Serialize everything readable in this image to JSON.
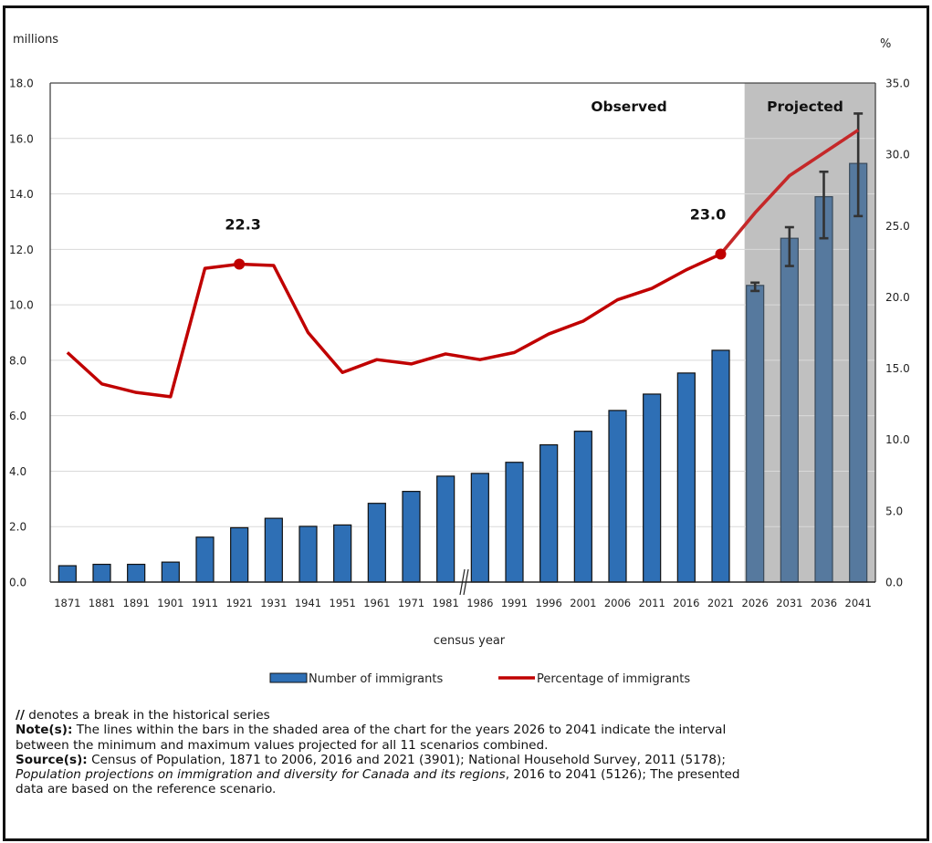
{
  "chart_data": {
    "type": "bar",
    "title": "",
    "xlabel": "census year",
    "ylabel": "millions",
    "y2label": "%",
    "ylim": [
      0,
      18
    ],
    "y2lim": [
      0,
      35
    ],
    "yticks": [
      "0.0",
      "2.0",
      "4.0",
      "6.0",
      "8.0",
      "10.0",
      "12.0",
      "14.0",
      "16.0",
      "18.0"
    ],
    "y2ticks": [
      "0.0",
      "5.0",
      "10.0",
      "15.0",
      "20.0",
      "25.0",
      "30.0",
      "35.0"
    ],
    "grid": true,
    "legend_position": "bottom",
    "categories": [
      "1871",
      "1881",
      "1891",
      "1901",
      "1911",
      "1921",
      "1931",
      "1941",
      "1951",
      "1961",
      "1971",
      "1981",
      "1986",
      "1991",
      "1996",
      "2001",
      "2006",
      "2011",
      "2016",
      "2021",
      "2026",
      "2031",
      "2036",
      "2041"
    ],
    "series": [
      {
        "name": "Number of immigrants",
        "type": "bar",
        "axis": "left",
        "color": "#2e6fb5",
        "projected_color": "#56799e",
        "values": [
          0.59,
          0.64,
          0.64,
          0.72,
          1.62,
          1.96,
          2.3,
          2.01,
          2.06,
          2.84,
          3.27,
          3.82,
          3.92,
          4.32,
          4.95,
          5.44,
          6.19,
          6.78,
          7.54,
          8.36,
          10.7,
          12.4,
          13.9,
          15.1
        ],
        "error_ranges": {
          "2026": [
            10.5,
            10.8
          ],
          "2031": [
            11.4,
            12.8
          ],
          "2036": [
            12.4,
            14.8
          ],
          "2041": [
            13.2,
            16.9
          ]
        }
      },
      {
        "name": "Percentage of immigrants",
        "type": "line",
        "axis": "right",
        "color": "#c00000",
        "values": [
          16.1,
          13.9,
          13.3,
          13.0,
          22.0,
          22.3,
          22.2,
          17.5,
          14.7,
          15.6,
          15.3,
          16.0,
          15.6,
          16.1,
          17.4,
          18.3,
          19.8,
          20.6,
          21.9,
          23.0,
          25.9,
          28.5,
          30.1,
          31.7
        ]
      }
    ],
    "annotations": [
      {
        "category": "1921",
        "series": "Percentage of immigrants",
        "text": "22.3"
      },
      {
        "category": "2021",
        "series": "Percentage of immigrants",
        "text": "23.0"
      }
    ],
    "regions": [
      {
        "label": "Observed",
        "from": "1871",
        "to": "2021",
        "shaded": false
      },
      {
        "label": "Projected",
        "from": "2026",
        "to": "2041",
        "shaded": true,
        "color": "#c0c0c0"
      }
    ],
    "series_break": {
      "between": [
        "1981",
        "1986"
      ],
      "marker": "//"
    }
  },
  "notes": {
    "break_symbol": "//",
    "break_text": " denotes a break in the historical series",
    "note_label": "Note(s):",
    "note_line1": " The lines within the bars in the shaded area of the chart for the years 2026 to 2041 indicate the interval",
    "note_line2": "between the minimum and maximum values projected for all 11 scenarios combined.",
    "source_label": "Source(s):",
    "source_line1": " Census of Population, 1871 to 2006, 2016 and 2021 (3901); National Household Survey, 2011 (5178);",
    "source_italic": "Population projections on immigration and diversity for Canada and its regions",
    "source_line2_rest": ", 2016 to 2041 (5126); The presented",
    "source_line3": "data are based on the reference scenario."
  }
}
